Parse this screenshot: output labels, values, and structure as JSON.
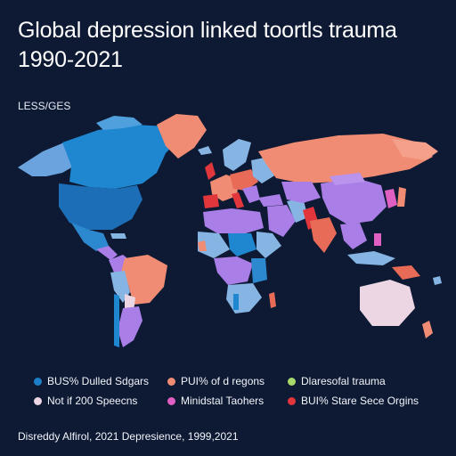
{
  "header": {
    "title": "Global depression linked toortls trauma 1990-2021",
    "subtitle": "LESS/GES"
  },
  "colors": {
    "background": "#0e1a33",
    "blue": "#1d7fc9",
    "light_blue": "#86b4e3",
    "orange": "#f08c74",
    "purple": "#a97ee6",
    "green": "#a6d96a",
    "pale": "#ecd6e4",
    "pink": "#e05fc2",
    "red": "#e0363c"
  },
  "legend": [
    {
      "label": "BUS% Dulled Sdgars",
      "color": "#1d7fc9"
    },
    {
      "label": "PUI% of d regons",
      "color": "#f08c74"
    },
    {
      "label": "Dlaresofal trauma",
      "color": "#a6d96a"
    },
    {
      "label": "Not if 200 Speecns",
      "color": "#ecd6e4"
    },
    {
      "label": "Minidstal Taohers",
      "color": "#e05fc2"
    },
    {
      "label": "BUI% Stare Sece Orgins",
      "color": "#e0363c"
    }
  ],
  "footer": {
    "source": "Disreddy Alfirol, 2021 Depresience, 1999,2021"
  }
}
